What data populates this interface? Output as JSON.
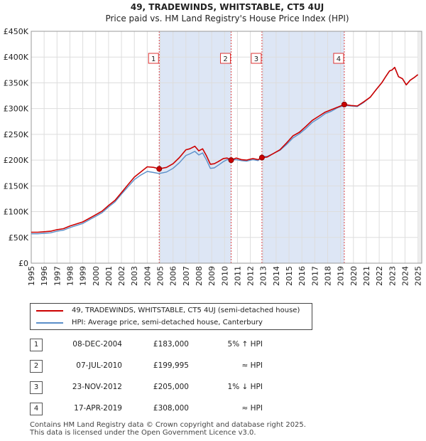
{
  "chart_data": {
    "type": "line",
    "title": "49, TRADEWINDS, WHITSTABLE, CT5 4UJ",
    "subtitle": "Price paid vs. HM Land Registry's House Price Index (HPI)",
    "xlim": [
      1995,
      2025.3
    ],
    "ylim": [
      0,
      450000
    ],
    "x_ticks": [
      1995,
      1996,
      1997,
      1998,
      1999,
      2000,
      2001,
      2002,
      2003,
      2004,
      2005,
      2006,
      2007,
      2008,
      2009,
      2010,
      2011,
      2012,
      2013,
      2014,
      2015,
      2016,
      2017,
      2018,
      2019,
      2020,
      2021,
      2022,
      2023,
      2024,
      2025
    ],
    "x_tick_labels": [
      "1995",
      "1996",
      "1997",
      "1998",
      "1999",
      "2000",
      "2001",
      "2002",
      "2003",
      "2004",
      "2005",
      "2006",
      "2007",
      "2008",
      "2009",
      "2010",
      "2011",
      "2012",
      "2013",
      "2014",
      "2015",
      "2016",
      "2017",
      "2018",
      "2019",
      "2020",
      "2021",
      "2022",
      "2023",
      "2024",
      "2025"
    ],
    "y_ticks": [
      0,
      50000,
      100000,
      150000,
      200000,
      250000,
      300000,
      350000,
      400000,
      450000
    ],
    "y_tick_labels": [
      "£0",
      "£50K",
      "£100K",
      "£150K",
      "£200K",
      "£250K",
      "£300K",
      "£350K",
      "£400K",
      "£450K"
    ],
    "series": [
      {
        "name": "49, TRADEWINDS, WHITSTABLE, CT5 4UJ (semi-detached house)",
        "color": "#cc0000",
        "x": [
          1995,
          1995.5,
          1996,
          1996.5,
          1997,
          1997.5,
          1998,
          1998.5,
          1999,
          1999.5,
          2000,
          2000.5,
          2001,
          2001.5,
          2002,
          2002.5,
          2003,
          2003.5,
          2004,
          2004.5,
          2004.93,
          2005.5,
          2006,
          2006.5,
          2007,
          2007.3,
          2007.7,
          2008,
          2008.3,
          2008.6,
          2008.9,
          2009.2,
          2009.5,
          2009.9,
          2010.2,
          2010.51,
          2010.9,
          2011.3,
          2011.7,
          2012.2,
          2012.6,
          2012.9,
          2013.3,
          2013.8,
          2014.3,
          2014.8,
          2015.3,
          2015.8,
          2016.3,
          2016.8,
          2017.3,
          2017.8,
          2018.3,
          2018.8,
          2019.29,
          2019.8,
          2020.3,
          2020.8,
          2021.3,
          2021.8,
          2022.2,
          2022.5,
          2022.8,
          2023.0,
          2023.2,
          2023.5,
          2023.8,
          2024.1,
          2024.4,
          2024.7,
          2025.0
        ],
        "y": [
          60000,
          60000,
          61000,
          62000,
          65000,
          67000,
          72000,
          76000,
          80000,
          87000,
          94000,
          101000,
          112000,
          122000,
          137000,
          152000,
          167000,
          177000,
          187000,
          186000,
          183000,
          186000,
          193000,
          205000,
          220000,
          222000,
          227000,
          218000,
          222000,
          208000,
          192000,
          193000,
          197000,
          203000,
          204000,
          199995,
          204000,
          201000,
          200000,
          203000,
          201000,
          205000,
          206000,
          213000,
          220000,
          233000,
          247000,
          254000,
          265000,
          277000,
          285000,
          293000,
          298000,
          303000,
          308000,
          306000,
          305000,
          313000,
          322000,
          338000,
          350000,
          362000,
          373000,
          375000,
          380000,
          362000,
          358000,
          346000,
          355000,
          360000,
          366000
        ]
      },
      {
        "name": "HPI: Average price, semi-detached house, Canterbury",
        "color": "#5b8fc9",
        "x": [
          1995,
          1995.5,
          1996,
          1996.5,
          1997,
          1997.5,
          1998,
          1998.5,
          1999,
          1999.5,
          2000,
          2000.5,
          2001,
          2001.5,
          2002,
          2002.5,
          2003,
          2003.5,
          2004,
          2004.5,
          2004.93,
          2005.5,
          2006,
          2006.5,
          2007,
          2007.3,
          2007.7,
          2008,
          2008.3,
          2008.6,
          2008.9,
          2009.2,
          2009.5,
          2009.9,
          2010.2,
          2010.51,
          2010.9,
          2011.3,
          2011.7,
          2012.2,
          2012.6,
          2012.9,
          2013.3,
          2013.8,
          2014.3,
          2014.8,
          2015.3,
          2015.8,
          2016.3,
          2016.8,
          2017.3,
          2017.8,
          2018.3,
          2018.8,
          2019.29,
          2019.8,
          2020.3,
          2020.8,
          2021.3,
          2021.8,
          2022.2,
          2022.5,
          2022.8,
          2023.0,
          2023.2,
          2023.5,
          2023.8,
          2024.1,
          2024.4,
          2024.7,
          2025.0
        ],
        "y": [
          57000,
          57000,
          58000,
          59000,
          62000,
          64000,
          69000,
          73000,
          77000,
          84000,
          91000,
          98000,
          109000,
          119000,
          134000,
          148000,
          162000,
          171000,
          178000,
          176000,
          174000,
          177000,
          184000,
          195000,
          209000,
          212000,
          217000,
          210000,
          214000,
          200000,
          184000,
          185000,
          190000,
          197000,
          201000,
          200000,
          201000,
          199000,
          198000,
          201000,
          199000,
          207000,
          207000,
          213000,
          219000,
          230000,
          243000,
          251000,
          261000,
          273000,
          281000,
          290000,
          295000,
          302000,
          306000,
          305000,
          304000,
          312000,
          322000,
          338000,
          350000,
          362000,
          373000,
          375000,
          380000,
          362000,
          358000,
          346000,
          355000,
          360000,
          366000
        ]
      }
    ],
    "sale_markers": [
      {
        "label": "1",
        "x": 2004.93,
        "y": 183000
      },
      {
        "label": "2",
        "x": 2010.51,
        "y": 199995
      },
      {
        "label": "3",
        "x": 2012.9,
        "y": 205000
      },
      {
        "label": "4",
        "x": 2019.29,
        "y": 308000
      }
    ],
    "shaded_ranges": [
      [
        2004.93,
        2010.51
      ],
      [
        2012.9,
        2019.29
      ]
    ],
    "shade_color": "#dde6f5",
    "grid": true
  },
  "legend": {
    "red_label": "49, TRADEWINDS, WHITSTABLE, CT5 4UJ (semi-detached house)",
    "blue_label": "HPI: Average price, semi-detached house, Canterbury"
  },
  "sales": [
    {
      "num": "1",
      "date": "08-DEC-2004",
      "price": "£183,000",
      "hpi": "5% ↑ HPI"
    },
    {
      "num": "2",
      "date": "07-JUL-2010",
      "price": "£199,995",
      "hpi": "≈ HPI"
    },
    {
      "num": "3",
      "date": "23-NOV-2012",
      "price": "£205,000",
      "hpi": "1% ↓ HPI"
    },
    {
      "num": "4",
      "date": "17-APR-2019",
      "price": "£308,000",
      "hpi": "≈ HPI"
    }
  ],
  "footer": {
    "line1": "Contains HM Land Registry data © Crown copyright and database right 2025.",
    "line2": "This data is licensed under the Open Government Licence v3.0."
  }
}
